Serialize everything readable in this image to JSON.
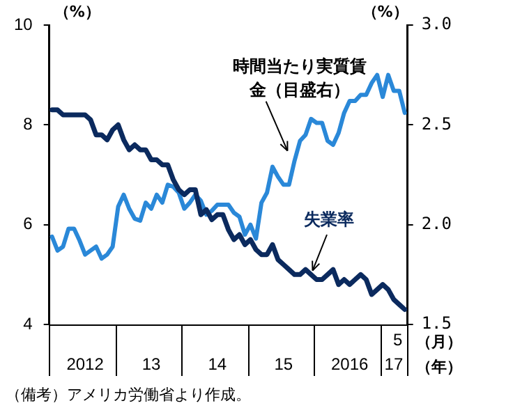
{
  "chart_data": {
    "type": "line",
    "ylabel": "（%）",
    "y2label": "（%）",
    "categories": [
      null,
      null,
      null,
      null,
      null,
      null,
      "2012",
      null,
      null,
      null,
      null,
      null,
      null,
      null,
      null,
      null,
      null,
      null,
      "13",
      null,
      null,
      null,
      null,
      null,
      null,
      null,
      null,
      null,
      null,
      null,
      "14",
      null,
      null,
      null,
      null,
      null,
      null,
      null,
      null,
      null,
      null,
      null,
      "15",
      null,
      null,
      null,
      null,
      null,
      null,
      null,
      null,
      null,
      null,
      null,
      "2016",
      null,
      null,
      null,
      null,
      null,
      null,
      null,
      "17",
      null,
      null
    ],
    "series": [
      {
        "name": "失業率",
        "color": "#0b2a5e",
        "values": [
          8.3,
          8.3,
          8.2,
          8.2,
          8.2,
          8.2,
          8.2,
          8.1,
          7.8,
          7.8,
          7.7,
          7.9,
          8.0,
          7.7,
          7.5,
          7.6,
          7.5,
          7.5,
          7.3,
          7.3,
          7.2,
          7.2,
          6.9,
          6.7,
          6.6,
          6.7,
          6.7,
          6.2,
          6.3,
          6.1,
          6.2,
          6.2,
          5.9,
          5.7,
          5.8,
          5.6,
          5.7,
          5.5,
          5.4,
          5.4,
          5.6,
          5.3,
          5.2,
          5.1,
          5.0,
          5.0,
          5.1,
          5.0,
          4.9,
          4.9,
          5.0,
          5.1,
          4.8,
          4.9,
          4.8,
          4.9,
          5.0,
          4.9,
          4.6,
          4.7,
          4.8,
          4.7,
          4.5,
          4.4,
          4.3
        ]
      },
      {
        "name": "時間当たり実質賃金（目盛右）",
        "color": "#2a88d8",
        "axis": "y2",
        "values": [
          1.94,
          1.87,
          1.89,
          1.98,
          1.98,
          1.92,
          1.85,
          1.87,
          1.89,
          1.83,
          1.85,
          1.89,
          2.09,
          2.15,
          2.08,
          2.03,
          2.02,
          2.11,
          2.08,
          2.15,
          2.11,
          2.2,
          2.19,
          2.16,
          2.08,
          2.11,
          2.15,
          2.12,
          2.05,
          2.07,
          2.1,
          2.1,
          2.1,
          2.06,
          2.04,
          1.95,
          2.0,
          1.93,
          2.11,
          2.16,
          2.29,
          2.24,
          2.2,
          2.2,
          2.32,
          2.42,
          2.45,
          2.53,
          2.51,
          2.51,
          2.42,
          2.4,
          2.46,
          2.56,
          2.62,
          2.62,
          2.65,
          2.65,
          2.71,
          2.75,
          2.64,
          2.75,
          2.67,
          2.67,
          2.56
        ]
      }
    ],
    "ylim": [
      4,
      10
    ],
    "yticks": [
      4,
      6,
      8,
      10
    ],
    "y2lim": [
      1.5,
      3.0
    ],
    "y2ticks": [
      {
        "value": 1.5,
        "label": "1.5"
      },
      {
        "value": 2,
        "label": "2.0"
      },
      {
        "value": 2.5,
        "label": "2.5"
      },
      {
        "value": 3,
        "label": "3.0"
      }
    ],
    "grid": false,
    "legend": false,
    "annotations": [
      "5",
      "（月）",
      "（年）",
      "（備考）アメリカ労働省より作成。"
    ]
  }
}
